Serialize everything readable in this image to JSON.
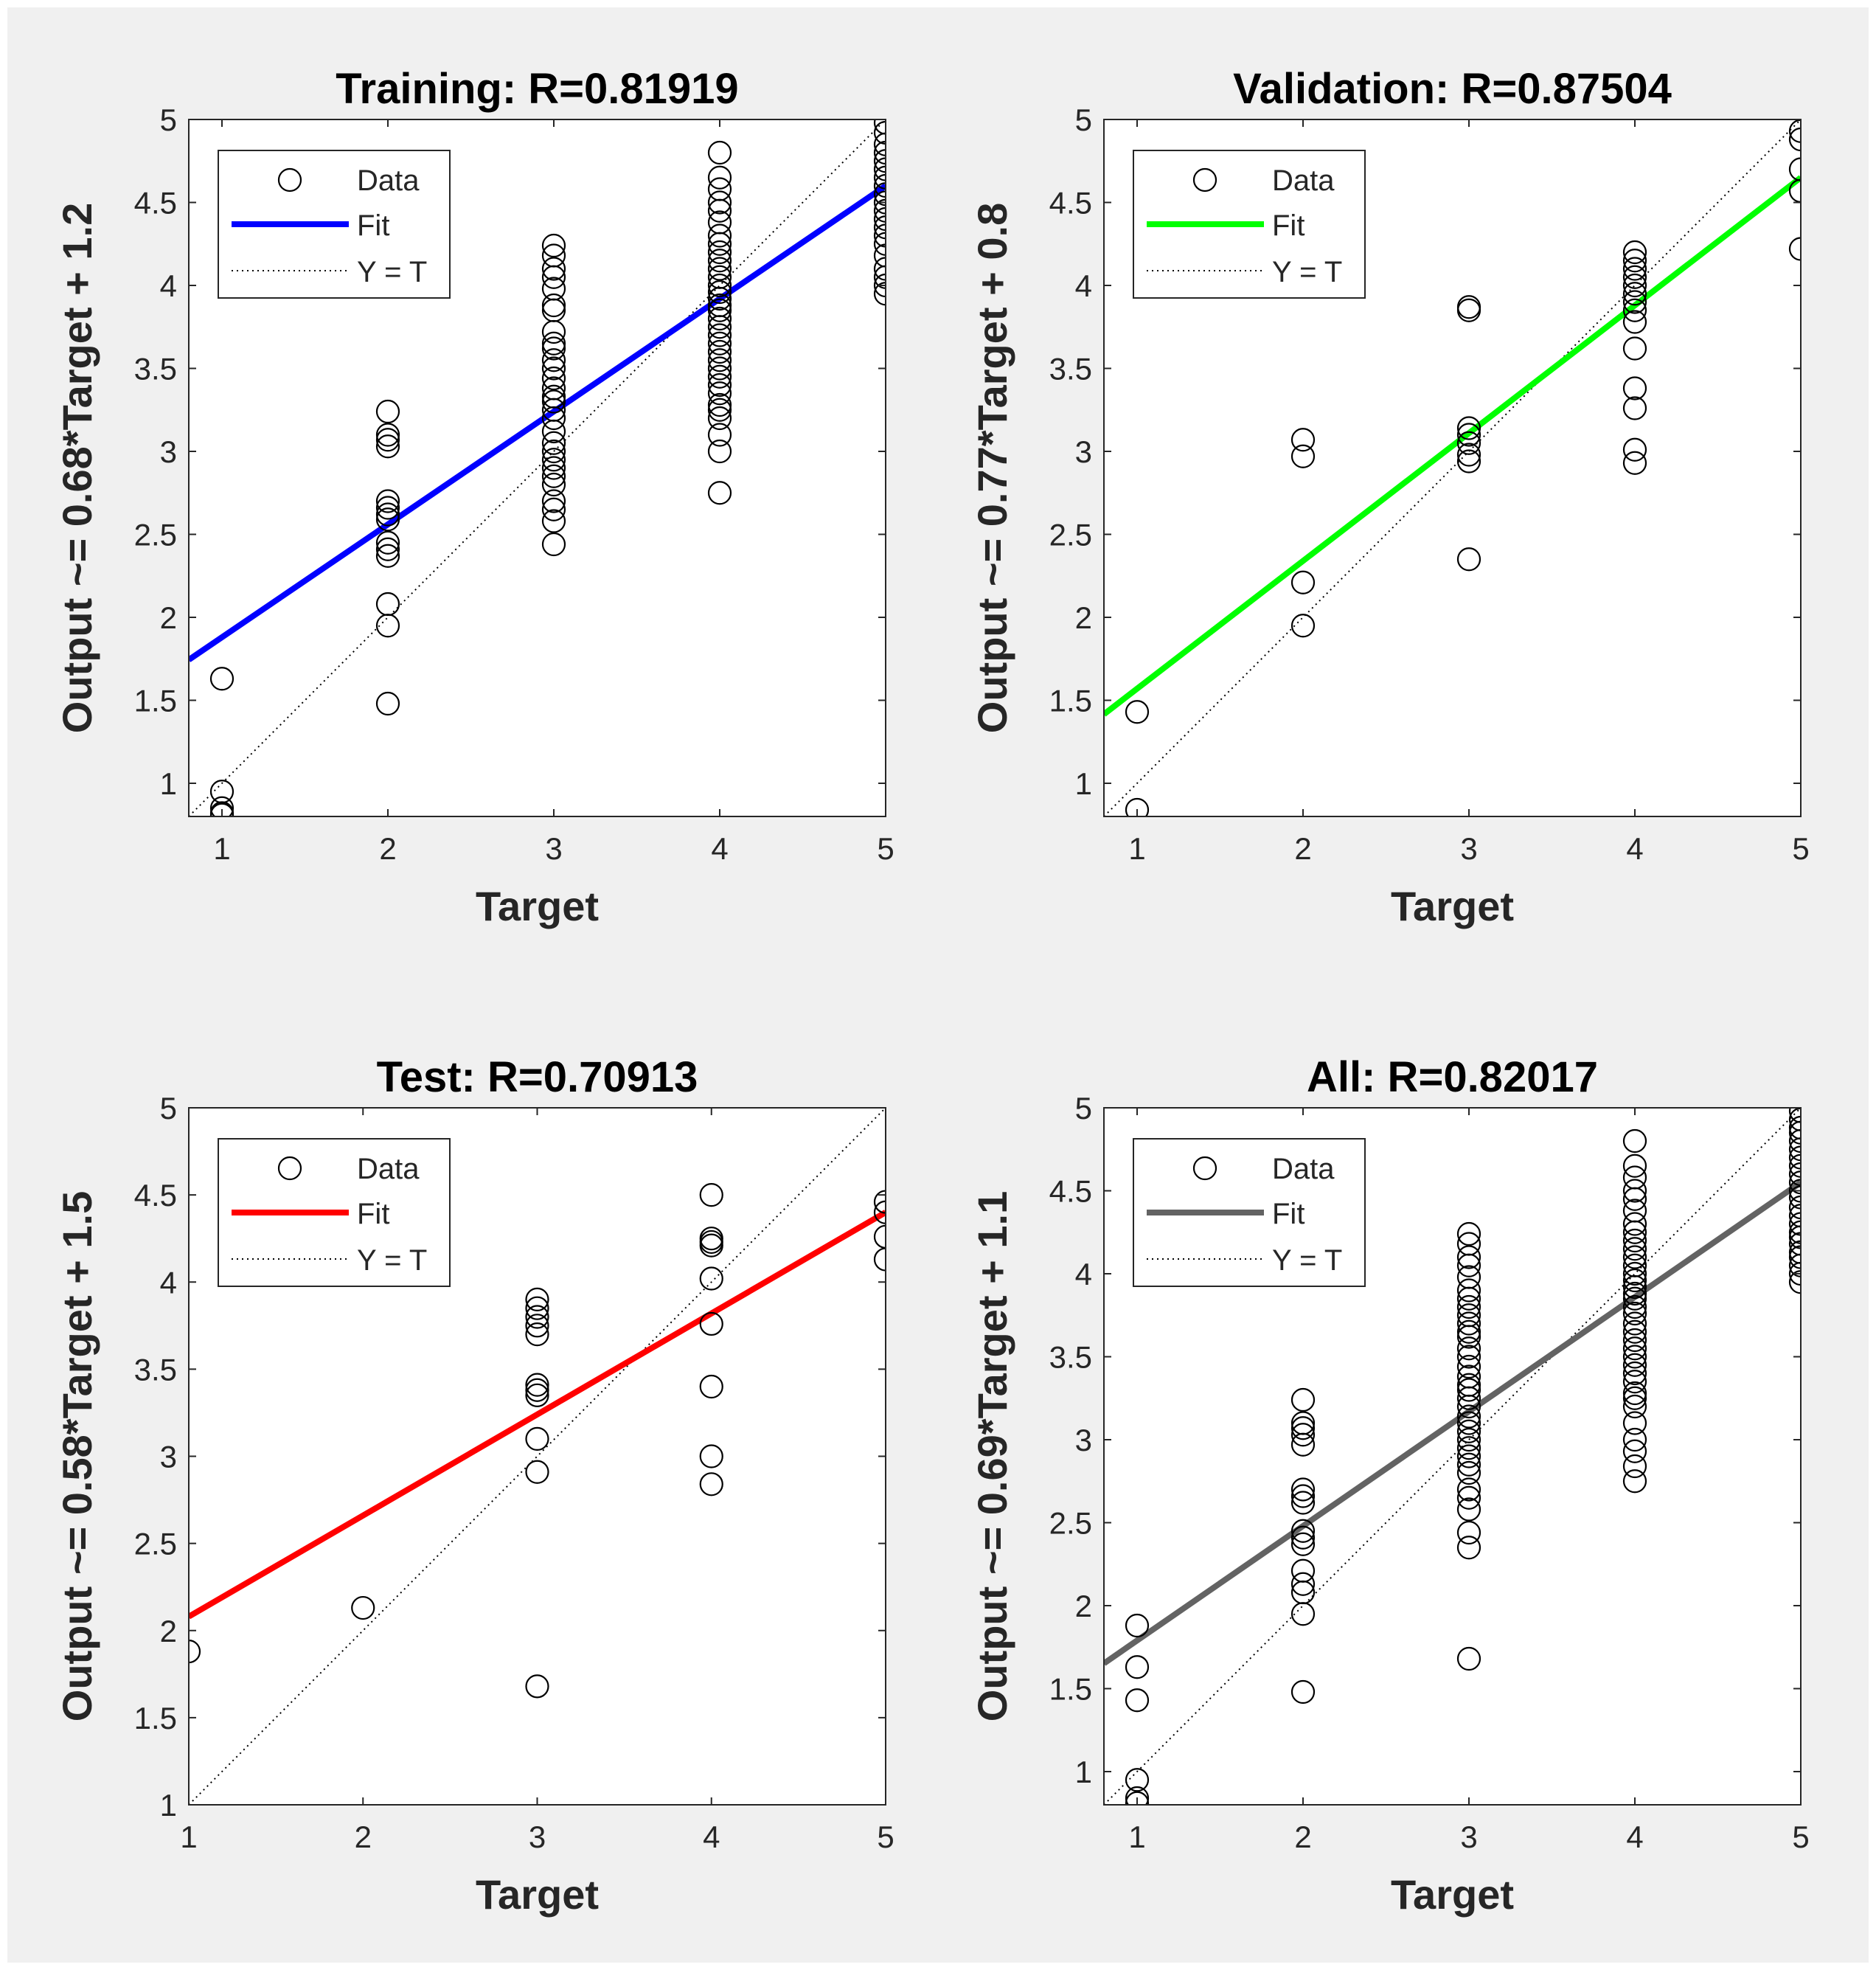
{
  "figure": {
    "background": "#f0f0f0"
  },
  "chart_data": [
    {
      "type": "scatter",
      "title": "Training: R=0.81919",
      "xlabel": "Target",
      "ylabel": "Output ~= 0.68*Target + 1.2",
      "xlim": [
        0.8,
        5.0
      ],
      "ylim": [
        0.8,
        5.0
      ],
      "xticks": [
        "1",
        "2",
        "3",
        "4",
        "5"
      ],
      "yticks": [
        "1",
        "1.5",
        "2",
        "2.5",
        "3",
        "3.5",
        "4",
        "4.5",
        "5"
      ],
      "grid": false,
      "legend_position": "top-left",
      "legend": [
        "Data",
        "Fit",
        "Y = T"
      ],
      "fit": {
        "slope": 0.68,
        "intercept": 1.2,
        "x_range": [
          0.8,
          5.0
        ],
        "color": "#0000ff"
      },
      "data_series": {
        "name": "Data",
        "points": [
          [
            1,
            1.63
          ],
          [
            1,
            0.95
          ],
          [
            1,
            0.85
          ],
          [
            1,
            0.82
          ],
          [
            1,
            0.81
          ],
          [
            2,
            3.24
          ],
          [
            2,
            3.1
          ],
          [
            2,
            3.07
          ],
          [
            2,
            3.03
          ],
          [
            2,
            2.7
          ],
          [
            2,
            2.66
          ],
          [
            2,
            2.62
          ],
          [
            2,
            2.59
          ],
          [
            2,
            2.45
          ],
          [
            2,
            2.41
          ],
          [
            2,
            2.37
          ],
          [
            2,
            2.08
          ],
          [
            2,
            1.95
          ],
          [
            2,
            1.48
          ],
          [
            3,
            4.24
          ],
          [
            3,
            4.18
          ],
          [
            3,
            4.1
          ],
          [
            3,
            4.05
          ],
          [
            3,
            3.98
          ],
          [
            3,
            3.88
          ],
          [
            3,
            3.85
          ],
          [
            3,
            3.72
          ],
          [
            3,
            3.65
          ],
          [
            3,
            3.62
          ],
          [
            3,
            3.55
          ],
          [
            3,
            3.5
          ],
          [
            3,
            3.44
          ],
          [
            3,
            3.38
          ],
          [
            3,
            3.33
          ],
          [
            3,
            3.3
          ],
          [
            3,
            3.25
          ],
          [
            3,
            3.2
          ],
          [
            3,
            3.12
          ],
          [
            3,
            3.05
          ],
          [
            3,
            3.0
          ],
          [
            3,
            2.95
          ],
          [
            3,
            2.9
          ],
          [
            3,
            2.85
          ],
          [
            3,
            2.8
          ],
          [
            3,
            2.7
          ],
          [
            3,
            2.65
          ],
          [
            3,
            2.58
          ],
          [
            3,
            2.44
          ],
          [
            4,
            4.8
          ],
          [
            4,
            4.65
          ],
          [
            4,
            4.58
          ],
          [
            4,
            4.5
          ],
          [
            4,
            4.45
          ],
          [
            4,
            4.38
          ],
          [
            4,
            4.3
          ],
          [
            4,
            4.25
          ],
          [
            4,
            4.2
          ],
          [
            4,
            4.15
          ],
          [
            4,
            4.1
          ],
          [
            4,
            4.05
          ],
          [
            4,
            4.0
          ],
          [
            4,
            3.96
          ],
          [
            4,
            3.92
          ],
          [
            4,
            3.88
          ],
          [
            4,
            3.85
          ],
          [
            4,
            3.8
          ],
          [
            4,
            3.75
          ],
          [
            4,
            3.7
          ],
          [
            4,
            3.65
          ],
          [
            4,
            3.6
          ],
          [
            4,
            3.55
          ],
          [
            4,
            3.5
          ],
          [
            4,
            3.45
          ],
          [
            4,
            3.4
          ],
          [
            4,
            3.35
          ],
          [
            4,
            3.28
          ],
          [
            4,
            3.25
          ],
          [
            4,
            3.2
          ],
          [
            4,
            3.1
          ],
          [
            4,
            3.0
          ],
          [
            4,
            2.75
          ],
          [
            5,
            4.98
          ],
          [
            5,
            4.92
          ],
          [
            5,
            4.85
          ],
          [
            5,
            4.8
          ],
          [
            5,
            4.75
          ],
          [
            5,
            4.7
          ],
          [
            5,
            4.65
          ],
          [
            5,
            4.6
          ],
          [
            5,
            4.55
          ],
          [
            5,
            4.5
          ],
          [
            5,
            4.45
          ],
          [
            5,
            4.4
          ],
          [
            5,
            4.35
          ],
          [
            5,
            4.3
          ],
          [
            5,
            4.25
          ],
          [
            5,
            4.18
          ],
          [
            5,
            4.1
          ],
          [
            5,
            4.05
          ],
          [
            5,
            4.0
          ],
          [
            5,
            3.95
          ]
        ]
      }
    },
    {
      "type": "scatter",
      "title": "Validation: R=0.87504",
      "xlabel": "Target",
      "ylabel": "Output ~= 0.77*Target + 0.8",
      "xlim": [
        0.8,
        5.0
      ],
      "ylim": [
        0.8,
        5.0
      ],
      "xticks": [
        "1",
        "2",
        "3",
        "4",
        "5"
      ],
      "yticks": [
        "1",
        "1.5",
        "2",
        "2.5",
        "3",
        "3.5",
        "4",
        "4.5",
        "5"
      ],
      "grid": false,
      "legend_position": "top-left",
      "legend": [
        "Data",
        "Fit",
        "Y = T"
      ],
      "fit": {
        "slope": 0.77,
        "intercept": 0.8,
        "x_range": [
          0.8,
          5.0
        ],
        "color": "#00ff00"
      },
      "data_series": {
        "name": "Data",
        "points": [
          [
            1,
            1.43
          ],
          [
            1,
            0.84
          ],
          [
            2,
            3.07
          ],
          [
            2,
            2.97
          ],
          [
            2,
            2.21
          ],
          [
            2,
            1.95
          ],
          [
            3,
            3.87
          ],
          [
            3,
            3.85
          ],
          [
            3,
            3.14
          ],
          [
            3,
            3.1
          ],
          [
            3,
            3.05
          ],
          [
            3,
            2.98
          ],
          [
            3,
            2.94
          ],
          [
            3,
            2.35
          ],
          [
            4,
            4.2
          ],
          [
            4,
            4.15
          ],
          [
            4,
            4.1
          ],
          [
            4,
            4.05
          ],
          [
            4,
            4.0
          ],
          [
            4,
            3.95
          ],
          [
            4,
            3.9
          ],
          [
            4,
            3.85
          ],
          [
            4,
            3.78
          ],
          [
            4,
            3.62
          ],
          [
            4,
            3.38
          ],
          [
            4,
            3.26
          ],
          [
            4,
            3.01
          ],
          [
            4,
            2.93
          ],
          [
            5,
            4.93
          ],
          [
            5,
            4.88
          ],
          [
            5,
            4.7
          ],
          [
            5,
            4.57
          ],
          [
            5,
            4.22
          ]
        ]
      }
    },
    {
      "type": "scatter",
      "title": "Test: R=0.70913",
      "xlabel": "Target",
      "ylabel": "Output ~= 0.58*Target + 1.5",
      "xlim": [
        1.0,
        5.0
      ],
      "ylim": [
        1.0,
        5.0
      ],
      "xticks": [
        "1",
        "2",
        "3",
        "4",
        "5"
      ],
      "yticks": [
        "1",
        "1.5",
        "2",
        "2.5",
        "3",
        "3.5",
        "4",
        "4.5",
        "5"
      ],
      "grid": false,
      "legend_position": "top-left",
      "legend": [
        "Data",
        "Fit",
        "Y = T"
      ],
      "fit": {
        "slope": 0.58,
        "intercept": 1.5,
        "x_range": [
          1.0,
          5.0
        ],
        "color": "#ff0000"
      },
      "data_series": {
        "name": "Data",
        "points": [
          [
            1,
            1.88
          ],
          [
            2,
            2.13
          ],
          [
            3,
            3.9
          ],
          [
            3,
            3.85
          ],
          [
            3,
            3.8
          ],
          [
            3,
            3.75
          ],
          [
            3,
            3.7
          ],
          [
            3,
            3.41
          ],
          [
            3,
            3.38
          ],
          [
            3,
            3.35
          ],
          [
            3,
            3.1
          ],
          [
            3,
            2.91
          ],
          [
            3,
            1.68
          ],
          [
            4,
            4.5
          ],
          [
            4,
            4.25
          ],
          [
            4,
            4.23
          ],
          [
            4,
            4.21
          ],
          [
            4,
            4.02
          ],
          [
            4,
            3.76
          ],
          [
            4,
            3.4
          ],
          [
            4,
            3.0
          ],
          [
            4,
            2.84
          ],
          [
            5,
            4.46
          ],
          [
            5,
            4.4
          ],
          [
            5,
            4.26
          ],
          [
            5,
            4.13
          ]
        ]
      }
    },
    {
      "type": "scatter",
      "title": "All: R=0.82017",
      "xlabel": "Target",
      "ylabel": "Output ~= 0.69*Target + 1.1",
      "xlim": [
        0.8,
        5.0
      ],
      "ylim": [
        0.8,
        5.0
      ],
      "xticks": [
        "1",
        "2",
        "3",
        "4",
        "5"
      ],
      "yticks": [
        "1",
        "1.5",
        "2",
        "2.5",
        "3",
        "3.5",
        "4",
        "4.5",
        "5"
      ],
      "grid": false,
      "legend_position": "top-left",
      "legend": [
        "Data",
        "Fit",
        "Y = T"
      ],
      "fit": {
        "slope": 0.69,
        "intercept": 1.1,
        "x_range": [
          0.8,
          5.0
        ],
        "color": "#636363"
      },
      "data_series": {
        "name": "Data",
        "points": [
          [
            1,
            1.88
          ],
          [
            1,
            1.63
          ],
          [
            1,
            1.43
          ],
          [
            1,
            0.95
          ],
          [
            1,
            0.84
          ],
          [
            1,
            0.81
          ],
          [
            2,
            3.24
          ],
          [
            2,
            3.1
          ],
          [
            2,
            3.07
          ],
          [
            2,
            3.03
          ],
          [
            2,
            2.97
          ],
          [
            2,
            2.7
          ],
          [
            2,
            2.66
          ],
          [
            2,
            2.62
          ],
          [
            2,
            2.45
          ],
          [
            2,
            2.41
          ],
          [
            2,
            2.37
          ],
          [
            2,
            2.21
          ],
          [
            2,
            2.13
          ],
          [
            2,
            2.08
          ],
          [
            2,
            1.95
          ],
          [
            2,
            1.48
          ],
          [
            3,
            4.24
          ],
          [
            3,
            4.18
          ],
          [
            3,
            4.1
          ],
          [
            3,
            4.05
          ],
          [
            3,
            3.98
          ],
          [
            3,
            3.9
          ],
          [
            3,
            3.85
          ],
          [
            3,
            3.8
          ],
          [
            3,
            3.75
          ],
          [
            3,
            3.7
          ],
          [
            3,
            3.65
          ],
          [
            3,
            3.62
          ],
          [
            3,
            3.55
          ],
          [
            3,
            3.5
          ],
          [
            3,
            3.44
          ],
          [
            3,
            3.38
          ],
          [
            3,
            3.33
          ],
          [
            3,
            3.3
          ],
          [
            3,
            3.25
          ],
          [
            3,
            3.2
          ],
          [
            3,
            3.14
          ],
          [
            3,
            3.1
          ],
          [
            3,
            3.05
          ],
          [
            3,
            3.0
          ],
          [
            3,
            2.95
          ],
          [
            3,
            2.9
          ],
          [
            3,
            2.85
          ],
          [
            3,
            2.8
          ],
          [
            3,
            2.7
          ],
          [
            3,
            2.65
          ],
          [
            3,
            2.58
          ],
          [
            3,
            2.44
          ],
          [
            3,
            2.35
          ],
          [
            3,
            1.68
          ],
          [
            4,
            4.8
          ],
          [
            4,
            4.65
          ],
          [
            4,
            4.58
          ],
          [
            4,
            4.5
          ],
          [
            4,
            4.45
          ],
          [
            4,
            4.38
          ],
          [
            4,
            4.3
          ],
          [
            4,
            4.25
          ],
          [
            4,
            4.2
          ],
          [
            4,
            4.15
          ],
          [
            4,
            4.1
          ],
          [
            4,
            4.05
          ],
          [
            4,
            4.0
          ],
          [
            4,
            3.96
          ],
          [
            4,
            3.92
          ],
          [
            4,
            3.88
          ],
          [
            4,
            3.85
          ],
          [
            4,
            3.8
          ],
          [
            4,
            3.76
          ],
          [
            4,
            3.7
          ],
          [
            4,
            3.65
          ],
          [
            4,
            3.6
          ],
          [
            4,
            3.55
          ],
          [
            4,
            3.5
          ],
          [
            4,
            3.45
          ],
          [
            4,
            3.4
          ],
          [
            4,
            3.35
          ],
          [
            4,
            3.28
          ],
          [
            4,
            3.25
          ],
          [
            4,
            3.2
          ],
          [
            4,
            3.1
          ],
          [
            4,
            3.0
          ],
          [
            4,
            2.93
          ],
          [
            4,
            2.84
          ],
          [
            4,
            2.75
          ],
          [
            5,
            4.98
          ],
          [
            5,
            4.93
          ],
          [
            5,
            4.88
          ],
          [
            5,
            4.85
          ],
          [
            5,
            4.8
          ],
          [
            5,
            4.75
          ],
          [
            5,
            4.7
          ],
          [
            5,
            4.65
          ],
          [
            5,
            4.6
          ],
          [
            5,
            4.55
          ],
          [
            5,
            4.5
          ],
          [
            5,
            4.46
          ],
          [
            5,
            4.4
          ],
          [
            5,
            4.35
          ],
          [
            5,
            4.3
          ],
          [
            5,
            4.25
          ],
          [
            5,
            4.22
          ],
          [
            5,
            4.18
          ],
          [
            5,
            4.13
          ],
          [
            5,
            4.1
          ],
          [
            5,
            4.05
          ],
          [
            5,
            4.0
          ],
          [
            5,
            3.95
          ]
        ]
      }
    }
  ]
}
